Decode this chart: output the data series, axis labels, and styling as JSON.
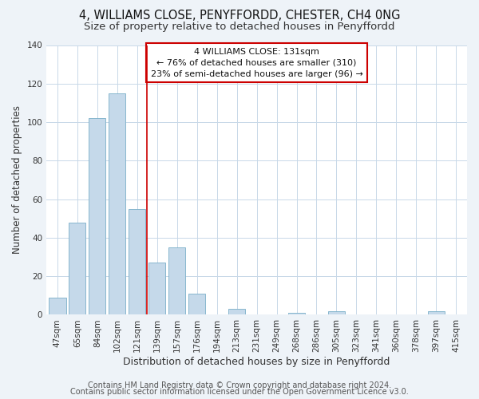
{
  "title": "4, WILLIAMS CLOSE, PENYFFORDD, CHESTER, CH4 0NG",
  "subtitle": "Size of property relative to detached houses in Penyffordd",
  "xlabel": "Distribution of detached houses by size in Penyffordd",
  "ylabel": "Number of detached properties",
  "bar_labels": [
    "47sqm",
    "65sqm",
    "84sqm",
    "102sqm",
    "121sqm",
    "139sqm",
    "157sqm",
    "176sqm",
    "194sqm",
    "213sqm",
    "231sqm",
    "249sqm",
    "268sqm",
    "286sqm",
    "305sqm",
    "323sqm",
    "341sqm",
    "360sqm",
    "378sqm",
    "397sqm",
    "415sqm"
  ],
  "bar_values": [
    9,
    48,
    102,
    115,
    55,
    27,
    35,
    11,
    0,
    3,
    0,
    0,
    1,
    0,
    2,
    0,
    0,
    0,
    0,
    2,
    0
  ],
  "bar_color": "#c5d9ea",
  "bar_edge_color": "#7aafc8",
  "ylim": [
    0,
    140
  ],
  "yticks": [
    0,
    20,
    40,
    60,
    80,
    100,
    120,
    140
  ],
  "vline_x": 4.5,
  "vline_color": "#cc0000",
  "annotation_title": "4 WILLIAMS CLOSE: 131sqm",
  "annotation_line1": "← 76% of detached houses are smaller (310)",
  "annotation_line2": "23% of semi-detached houses are larger (96) →",
  "footer1": "Contains HM Land Registry data © Crown copyright and database right 2024.",
  "footer2": "Contains public sector information licensed under the Open Government Licence v3.0.",
  "background_color": "#eef3f8",
  "plot_bg_color": "#ffffff",
  "title_fontsize": 10.5,
  "subtitle_fontsize": 9.5,
  "xlabel_fontsize": 9,
  "ylabel_fontsize": 8.5,
  "tick_fontsize": 7.5,
  "footer_fontsize": 7
}
